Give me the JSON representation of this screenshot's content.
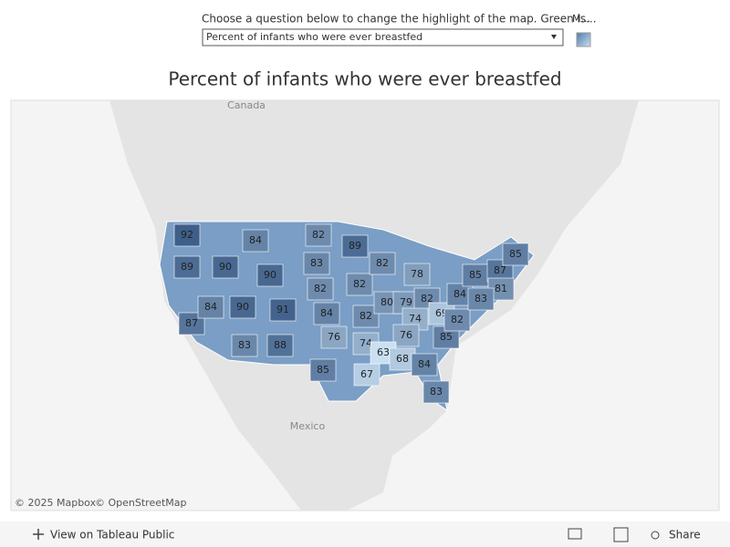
{
  "header": {
    "prompt": "Choose a question below to change the highlight of the map. Green is...",
    "dropdown": "Percent of infants who were ever breastfed",
    "legend_title": "M..."
  },
  "map": {
    "title": "Percent of infants who were ever breastfed",
    "places": [
      "Canada",
      "Mexico"
    ],
    "states": [
      92,
      89,
      87,
      90,
      84,
      84,
      90,
      90,
      83,
      91,
      88,
      82,
      83,
      82,
      84,
      76,
      85,
      89,
      82,
      82,
      74,
      67,
      82,
      80,
      78,
      79,
      82,
      74,
      76,
      63,
      68,
      84,
      83,
      85,
      69,
      82,
      84,
      85,
      87,
      85,
      81,
      83
    ],
    "attribution": [
      "© 2025 Mapbox",
      "© OpenStreetMap"
    ]
  },
  "toolbar": {
    "view": "View on Tableau Public",
    "share": "Share"
  }
}
